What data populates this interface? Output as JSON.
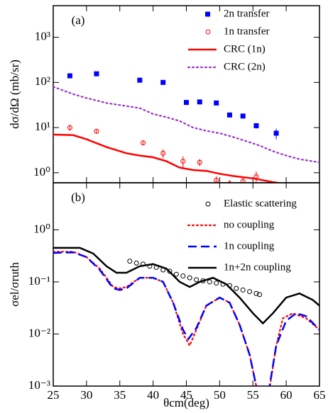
{
  "chart_data": [
    {
      "type": "line",
      "panel_label": "(a)",
      "ylabel": "dσ/dΩ (mb/sr)",
      "log_y": true,
      "legend": "upper right",
      "xlim": [
        25,
        65
      ],
      "xticks": [
        25,
        30,
        35,
        40,
        45,
        50,
        55,
        60,
        65
      ],
      "ylim": [
        0.6,
        5000
      ],
      "yticks": [
        {
          "value": 1,
          "label": "10⁰"
        },
        {
          "value": 10,
          "label": "10¹"
        },
        {
          "value": 100,
          "label": "10²"
        },
        {
          "value": 1000,
          "label": "10³"
        }
      ],
      "series": [
        {
          "name": "2n transfer",
          "color": "#0000ff",
          "style": "square",
          "x": [
            27.5,
            31.5,
            38,
            41.5,
            45,
            47,
            49.5,
            51.5,
            53.5,
            55.5,
            58.5
          ],
          "values": [
            140,
            155,
            112,
            100,
            36,
            37,
            35,
            19,
            18,
            11,
            7.5
          ],
          "errors": [
            10,
            10,
            8,
            7,
            3,
            3,
            3,
            2,
            2,
            1.5,
            2
          ]
        },
        {
          "name": "1n transfer",
          "color": "#ff0000",
          "style": "circle",
          "x": [
            27.5,
            31.5,
            38.5,
            41.5,
            44.5,
            47,
            49.5,
            51.5,
            53.5,
            55.5
          ],
          "values": [
            10,
            8.3,
            4.6,
            2.7,
            1.8,
            1.7,
            0.68,
            0.57,
            0.65,
            0.82
          ],
          "errors": [
            1.5,
            1,
            0.5,
            0.6,
            0.5,
            0.3,
            0.15,
            0.12,
            0.15,
            0.25
          ]
        },
        {
          "name": "CRC (1n)",
          "color": "#ff0000",
          "style": "solid",
          "x": [
            25,
            28,
            30,
            33,
            36,
            38,
            40,
            42,
            44,
            46,
            48,
            50,
            52,
            55,
            58,
            62,
            65
          ],
          "values": [
            7,
            6.8,
            5.5,
            3.7,
            2.7,
            2.4,
            2.2,
            1.8,
            1.3,
            1.15,
            1.1,
            0.95,
            0.85,
            0.75,
            0.62,
            0.52,
            0.45
          ]
        },
        {
          "name": "CRC (2n)",
          "color": "#9933cc",
          "style": "dotted",
          "x": [
            25,
            28,
            30,
            33,
            36,
            38,
            40,
            42,
            44,
            46,
            48,
            50,
            52,
            54,
            56,
            58,
            60,
            62,
            65
          ],
          "values": [
            80,
            55,
            45,
            35,
            30,
            27,
            20,
            17,
            14,
            10,
            8.5,
            7.5,
            6.2,
            5,
            4,
            3,
            2.4,
            2,
            1.7
          ]
        }
      ]
    },
    {
      "type": "line",
      "panel_label": "(b)",
      "ylabel": "σel/σruth",
      "xlabel": "θcm(deg)",
      "log_y": true,
      "legend": "upper right",
      "xlim": [
        25,
        65
      ],
      "xticks": [
        25,
        30,
        35,
        40,
        45,
        50,
        55,
        60,
        65
      ],
      "ylim": [
        0.001,
        8
      ],
      "yticks": [
        {
          "value": 0.001,
          "label": "10⁻³"
        },
        {
          "value": 0.01,
          "label": "10⁻²"
        },
        {
          "value": 0.1,
          "label": "10⁻¹"
        },
        {
          "value": 1,
          "label": "10⁰"
        }
      ],
      "series": [
        {
          "name": "Elastic scattering",
          "color": "#000000",
          "style": "circle",
          "x": [
            36.5,
            37.5,
            38.5,
            39.5,
            40.5,
            41.5,
            42.5,
            43.5,
            44.5,
            45.5,
            46.5,
            47.5,
            48.5,
            49.5,
            50.5,
            51.5,
            52.5,
            53.5,
            54.5,
            55.5,
            56
          ],
          "values": [
            0.25,
            0.23,
            0.22,
            0.2,
            0.19,
            0.17,
            0.16,
            0.14,
            0.13,
            0.12,
            0.11,
            0.105,
            0.1,
            0.095,
            0.09,
            0.085,
            0.075,
            0.07,
            0.065,
            0.06,
            0.057
          ]
        },
        {
          "name": "no coupling",
          "color": "#ff0000",
          "style": "dotted",
          "x": [
            25,
            28,
            30,
            32,
            34,
            35,
            36,
            38,
            40,
            41.5,
            43,
            44.5,
            45.5,
            46.5,
            48,
            50,
            51.5,
            53,
            54.5,
            55.5,
            56.5,
            57.5,
            58.5,
            59.5,
            61,
            63,
            65
          ],
          "values": [
            0.38,
            0.38,
            0.3,
            0.18,
            0.08,
            0.075,
            0.08,
            0.12,
            0.12,
            0.1,
            0.04,
            0.01,
            0.006,
            0.012,
            0.035,
            0.05,
            0.04,
            0.015,
            0.004,
            0.001,
            0.0003,
            0.0009,
            0.006,
            0.02,
            0.025,
            0.02,
            0.012
          ]
        },
        {
          "name": "1n coupling",
          "color": "#0000ff",
          "style": "dashed",
          "x": [
            25,
            28,
            30,
            32,
            34,
            35,
            36,
            38,
            40,
            41.5,
            43,
            44.5,
            45.3,
            46.5,
            48,
            50,
            51.5,
            53,
            54.5,
            55.5,
            56.5,
            57.5,
            58.5,
            60,
            61.5,
            63,
            65
          ],
          "values": [
            0.36,
            0.37,
            0.3,
            0.17,
            0.075,
            0.07,
            0.075,
            0.12,
            0.12,
            0.1,
            0.04,
            0.012,
            0.008,
            0.013,
            0.035,
            0.05,
            0.04,
            0.015,
            0.004,
            0.001,
            0.0004,
            0.001,
            0.006,
            0.018,
            0.025,
            0.022,
            0.012
          ]
        },
        {
          "name": "1n+2n coupling",
          "color": "#000000",
          "style": "solid",
          "x": [
            25,
            29,
            31,
            33,
            34.5,
            36,
            38,
            40,
            42,
            44,
            45.5,
            47,
            49,
            51,
            53,
            55,
            56.5,
            58,
            60,
            62,
            64,
            65
          ],
          "values": [
            0.45,
            0.45,
            0.35,
            0.2,
            0.15,
            0.15,
            0.2,
            0.22,
            0.18,
            0.1,
            0.08,
            0.1,
            0.12,
            0.09,
            0.05,
            0.025,
            0.016,
            0.025,
            0.05,
            0.06,
            0.045,
            0.035
          ]
        }
      ]
    }
  ]
}
